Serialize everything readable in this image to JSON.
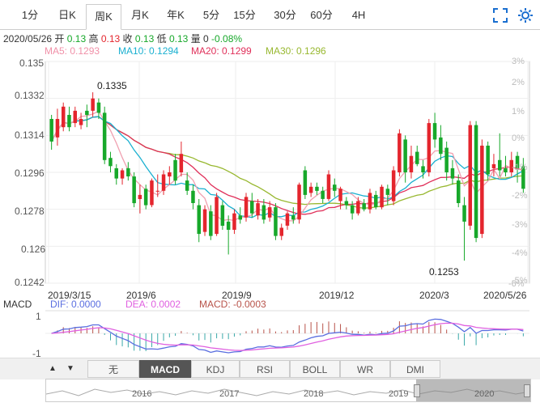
{
  "tabs": [
    {
      "label": "1分"
    },
    {
      "label": "日K"
    },
    {
      "label": "周K",
      "active": true
    },
    {
      "label": "月K"
    },
    {
      "label": "年K"
    },
    {
      "label": "5分"
    },
    {
      "label": "15分"
    },
    {
      "label": "30分"
    },
    {
      "label": "60分"
    },
    {
      "label": "4H"
    }
  ],
  "info": {
    "date": "2020/05/26",
    "open_label": "开",
    "open": "0.13",
    "high_label": "高",
    "high": "0.13",
    "close_label": "收",
    "close": "0.13",
    "low_label": "低",
    "low": "0.13",
    "vol_label": "量",
    "vol": "0",
    "change": "-0.08%"
  },
  "ma": {
    "ma5": "MA5: 0.1293",
    "ma10": "MA10: 0.1294",
    "ma20": "MA20: 0.1299",
    "ma30": "MA30: 0.1296"
  },
  "macd": {
    "title": "MACD",
    "dif": "DIF: 0.0000",
    "dea": "DEA: 0.0002",
    "macd": "MACD: -0.0003",
    "axis_top": "1",
    "axis_bottom": "-1"
  },
  "indicators": [
    {
      "label": "无"
    },
    {
      "label": "MACD",
      "selected": true
    },
    {
      "label": "KDJ"
    },
    {
      "label": "RSI"
    },
    {
      "label": "BOLL"
    },
    {
      "label": "WR"
    },
    {
      "label": "DMI"
    }
  ],
  "navigator": {
    "years": [
      "2016",
      "2017",
      "2018",
      "2019",
      "2020"
    ]
  },
  "colors": {
    "up": "#e4252d",
    "down": "#17a82a",
    "ma5": "#f0a0b0",
    "ma10": "#1ab0d0",
    "ma20": "#e0305a",
    "ma30": "#98b830",
    "dif": "#5a6ee0",
    "dea": "#e060e0"
  },
  "chart_data": {
    "type": "candlestick",
    "y_ticks": [
      "0.135",
      "0.1332",
      "0.1314",
      "0.1296",
      "0.1278",
      "0.126",
      "0.1242"
    ],
    "ylim": [
      0.1242,
      0.135
    ],
    "pct_ticks": [
      "3%",
      "2%",
      "1%",
      "0%",
      "-1%",
      "-2%",
      "-3%",
      "-4%",
      "-5%",
      "-6%"
    ],
    "x_ticks": [
      "2019/3/15",
      "2019/6",
      "2019/9",
      "2019/12",
      "2020/3",
      "2020/5/26"
    ],
    "annotations": [
      {
        "label": "0.1335",
        "value": 0.1335
      },
      {
        "label": "0.1253",
        "value": 0.1253
      }
    ],
    "candles": [
      [
        0.1322,
        0.1311,
        0.1324,
        0.1307
      ],
      [
        0.1313,
        0.1322,
        0.1327,
        0.1309
      ],
      [
        0.1318,
        0.1328,
        0.133,
        0.1316
      ],
      [
        0.1324,
        0.1318,
        0.1328,
        0.1316
      ],
      [
        0.132,
        0.1326,
        0.1328,
        0.1318
      ],
      [
        0.1319,
        0.1322,
        0.1325,
        0.1317
      ],
      [
        0.1326,
        0.1324,
        0.1329,
        0.1318
      ],
      [
        0.1326,
        0.1332,
        0.1335,
        0.1323
      ],
      [
        0.133,
        0.1325,
        0.1332,
        0.1322
      ],
      [
        0.1325,
        0.1302,
        0.1328,
        0.13
      ],
      [
        0.1303,
        0.1299,
        0.1306,
        0.1296
      ],
      [
        0.1298,
        0.1293,
        0.13,
        0.129
      ],
      [
        0.1293,
        0.1297,
        0.1298,
        0.129
      ],
      [
        0.1298,
        0.1294,
        0.1301,
        0.1292
      ],
      [
        0.1294,
        0.1281,
        0.1296,
        0.1279
      ],
      [
        0.1283,
        0.1285,
        0.129,
        0.1276
      ],
      [
        0.1288,
        0.128,
        0.129,
        0.1278
      ],
      [
        0.128,
        0.1292,
        0.1293,
        0.1279
      ],
      [
        0.1287,
        0.1287,
        0.1295,
        0.1284
      ],
      [
        0.1287,
        0.1295,
        0.1297,
        0.1285
      ],
      [
        0.1294,
        0.1296,
        0.1299,
        0.129
      ],
      [
        0.1302,
        0.1292,
        0.1305,
        0.129
      ],
      [
        0.1296,
        0.1305,
        0.1311,
        0.1294
      ],
      [
        0.1292,
        0.1287,
        0.1296,
        0.1285
      ],
      [
        0.1287,
        0.1281,
        0.129,
        0.1278
      ],
      [
        0.128,
        0.1266,
        0.1283,
        0.1262
      ],
      [
        0.1267,
        0.1278,
        0.128,
        0.1265
      ],
      [
        0.1277,
        0.1265,
        0.128,
        0.1263
      ],
      [
        0.1266,
        0.1284,
        0.1286,
        0.1265
      ],
      [
        0.128,
        0.127,
        0.1282,
        0.1268
      ],
      [
        0.1272,
        0.1268,
        0.1275,
        0.1256
      ],
      [
        0.1268,
        0.1276,
        0.1278,
        0.1266
      ],
      [
        0.1275,
        0.1273,
        0.1279,
        0.1271
      ],
      [
        0.1274,
        0.1284,
        0.1286,
        0.1272
      ],
      [
        0.1282,
        0.1276,
        0.1286,
        0.1274
      ],
      [
        0.1275,
        0.1281,
        0.1283,
        0.1273
      ],
      [
        0.128,
        0.1273,
        0.1283,
        0.1271
      ],
      [
        0.1274,
        0.1279,
        0.1282,
        0.1272
      ],
      [
        0.1279,
        0.1265,
        0.1281,
        0.1263
      ],
      [
        0.1265,
        0.1269,
        0.1271,
        0.1263
      ],
      [
        0.127,
        0.1276,
        0.1277,
        0.1268
      ],
      [
        0.1275,
        0.1273,
        0.1279,
        0.1271
      ],
      [
        0.1273,
        0.129,
        0.1291,
        0.1271
      ],
      [
        0.1297,
        0.1285,
        0.1299,
        0.1283
      ],
      [
        0.1286,
        0.1289,
        0.1291,
        0.1284
      ],
      [
        0.1289,
        0.1287,
        0.1291,
        0.1285
      ],
      [
        0.1287,
        0.1283,
        0.1289,
        0.1281
      ],
      [
        0.1283,
        0.1295,
        0.1297,
        0.1282
      ],
      [
        0.129,
        0.1287,
        0.1293,
        0.1284
      ],
      [
        0.1282,
        0.1288,
        0.1289,
        0.1278
      ],
      [
        0.1282,
        0.128,
        0.1284,
        0.1278
      ],
      [
        0.128,
        0.1276,
        0.1282,
        0.1273
      ],
      [
        0.1276,
        0.1282,
        0.1284,
        0.1275
      ],
      [
        0.1281,
        0.1278,
        0.1283,
        0.1277
      ],
      [
        0.1278,
        0.1286,
        0.1288,
        0.1276
      ],
      [
        0.1285,
        0.1279,
        0.1287,
        0.1278
      ],
      [
        0.1279,
        0.1289,
        0.129,
        0.1278
      ],
      [
        0.1288,
        0.1285,
        0.129,
        0.128
      ],
      [
        0.1282,
        0.1297,
        0.1299,
        0.128
      ],
      [
        0.1296,
        0.1315,
        0.1317,
        0.1294
      ],
      [
        0.1312,
        0.1296,
        0.1314,
        0.1291
      ],
      [
        0.1296,
        0.1304,
        0.1309,
        0.1293
      ],
      [
        0.1306,
        0.13,
        0.1309,
        0.1299
      ],
      [
        0.1299,
        0.1296,
        0.1302,
        0.1293
      ],
      [
        0.1296,
        0.132,
        0.1322,
        0.1294
      ],
      [
        0.132,
        0.1312,
        0.1325,
        0.1308
      ],
      [
        0.1313,
        0.1305,
        0.1319,
        0.1302
      ],
      [
        0.1308,
        0.1296,
        0.1311,
        0.1292
      ],
      [
        0.1298,
        0.1293,
        0.1302,
        0.129
      ],
      [
        0.1292,
        0.1281,
        0.1295,
        0.1279
      ],
      [
        0.128,
        0.1272,
        0.1284,
        0.1253
      ],
      [
        0.127,
        0.1319,
        0.1321,
        0.1268
      ],
      [
        0.1319,
        0.1264,
        0.1321,
        0.1262
      ],
      [
        0.1266,
        0.1309,
        0.1312,
        0.1264
      ],
      [
        0.1309,
        0.1295,
        0.1311,
        0.1292
      ],
      [
        0.1298,
        0.13,
        0.1305,
        0.1294
      ],
      [
        0.1302,
        0.1297,
        0.1315,
        0.1294
      ],
      [
        0.1298,
        0.1296,
        0.1304,
        0.1294
      ],
      [
        0.1296,
        0.1302,
        0.1306,
        0.1294
      ],
      [
        0.1304,
        0.1298,
        0.1306,
        0.1291
      ],
      [
        0.1299,
        0.1288,
        0.1303,
        0.1286
      ]
    ]
  }
}
